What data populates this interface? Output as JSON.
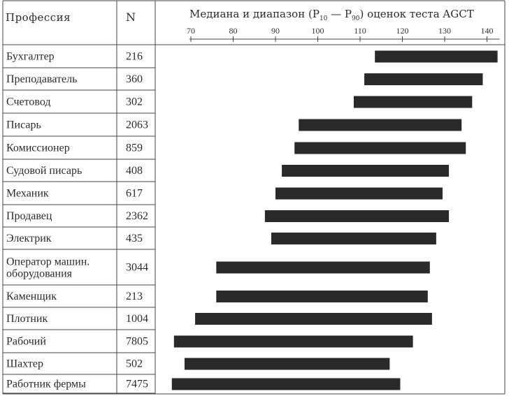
{
  "header": {
    "col_profession": "Профессия",
    "col_n": "N",
    "chart_title_main": "Медиана и диапазон (P",
    "chart_title_sub10": "10",
    "chart_title_dash": " — P",
    "chart_title_sub90": "90",
    "chart_title_end": ") оценок теста AGCT"
  },
  "chart_data": {
    "type": "bar",
    "orientation": "horizontal-range",
    "title": "Медиана и диапазон (P10 — P90) оценок теста AGCT",
    "xlim": [
      65,
      143
    ],
    "x_ticks": [
      70,
      80,
      90,
      100,
      110,
      120,
      130,
      140
    ],
    "tick_labels": [
      "70",
      "80",
      "90",
      "100",
      "110",
      "120",
      "130",
      "140"
    ],
    "rows": [
      {
        "profession": [
          "Бухгалтер"
        ],
        "n": "216",
        "low": 113.5,
        "high": 142.5
      },
      {
        "profession": [
          "Преподаватель"
        ],
        "n": "360",
        "low": 111,
        "high": 139
      },
      {
        "profession": [
          "Счетовод"
        ],
        "n": "302",
        "low": 108.5,
        "high": 136.5
      },
      {
        "profession": [
          "Писарь"
        ],
        "n": "2063",
        "low": 95.5,
        "high": 134
      },
      {
        "profession": [
          "Комиссионер"
        ],
        "n": "859",
        "low": 94.5,
        "high": 135
      },
      {
        "profession": [
          "Судовой писарь"
        ],
        "n": "408",
        "low": 91.5,
        "high": 131
      },
      {
        "profession": [
          "Механик"
        ],
        "n": "617",
        "low": 90,
        "high": 129.5
      },
      {
        "profession": [
          "Продавец"
        ],
        "n": "2362",
        "low": 87.5,
        "high": 131
      },
      {
        "profession": [
          "Электрик"
        ],
        "n": "435",
        "low": 89,
        "high": 128
      },
      {
        "profession": [
          "Оператор машин.",
          "оборудования"
        ],
        "n": "3044",
        "low": 76,
        "high": 126.5
      },
      {
        "profession": [
          "Каменщик"
        ],
        "n": "213",
        "low": 76,
        "high": 126
      },
      {
        "profession": [
          "Плотник"
        ],
        "n": "1004",
        "low": 71,
        "high": 127
      },
      {
        "profession": [
          "Рабочий"
        ],
        "n": "7805",
        "low": 66,
        "high": 122.5
      },
      {
        "profession": [
          "Шахтер"
        ],
        "n": "502",
        "low": 68.5,
        "high": 117
      },
      {
        "profession": [
          "Работник фермы"
        ],
        "n": "7475",
        "low": 65.5,
        "high": 119.5
      }
    ]
  }
}
